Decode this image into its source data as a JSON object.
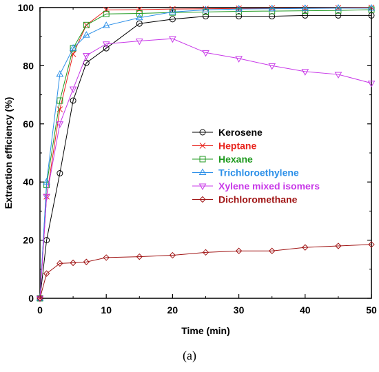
{
  "chart_data": {
    "type": "line",
    "xlabel": "Time (min)",
    "ylabel": "Extraction efficiency (%)",
    "xlim": [
      0,
      50
    ],
    "ylim": [
      0,
      100
    ],
    "xticks": [
      "0",
      "10",
      "20",
      "30",
      "40",
      "50"
    ],
    "yticks": [
      "0",
      "20",
      "40",
      "60",
      "80",
      "100"
    ],
    "grid": false,
    "legend_position": "center-right",
    "panel_label": "(a)",
    "series": [
      {
        "name": "Kerosene",
        "color": "#000000",
        "marker": "circle",
        "x": [
          0,
          1,
          3,
          5,
          7,
          10,
          15,
          20,
          25,
          30,
          35,
          40,
          45,
          50
        ],
        "y": [
          0,
          20,
          43,
          68,
          81,
          86,
          94.5,
          96,
          97,
          97,
          97,
          97.3,
          97.3,
          97.3
        ]
      },
      {
        "name": "Heptane",
        "color": "#e8231c",
        "marker": "x",
        "x": [
          0,
          1,
          3,
          5,
          7,
          10,
          15,
          20,
          25,
          30,
          35,
          40,
          45,
          50
        ],
        "y": [
          0,
          35,
          65,
          84,
          94,
          99.2,
          99.3,
          99.5,
          99.6,
          99.7,
          99.8,
          99.8,
          99.9,
          100
        ]
      },
      {
        "name": "Hexane",
        "color": "#1f9a1f",
        "marker": "square",
        "x": [
          0,
          1,
          3,
          5,
          7,
          10,
          15,
          20,
          25,
          30,
          35,
          40,
          45,
          50
        ],
        "y": [
          0,
          39,
          68,
          86,
          94,
          97.8,
          98,
          98.3,
          98.5,
          98.7,
          98.8,
          98.9,
          99,
          99.3
        ]
      },
      {
        "name": "Trichloroethylene",
        "color": "#2b8fe8",
        "marker": "triangle-up",
        "x": [
          0,
          1,
          3,
          5,
          7,
          10,
          15,
          20,
          25,
          30,
          35,
          40,
          45,
          50
        ],
        "y": [
          0,
          40,
          77,
          86,
          90.5,
          93.8,
          96.5,
          98.5,
          99.2,
          99.5,
          99.6,
          99.7,
          99.8,
          99.8
        ]
      },
      {
        "name": "Xylene mixed isomers",
        "color": "#c838e8",
        "marker": "triangle-down",
        "x": [
          0,
          1,
          3,
          5,
          7,
          10,
          15,
          20,
          25,
          30,
          35,
          40,
          45,
          50
        ],
        "y": [
          0,
          35,
          60,
          72,
          83.5,
          87.5,
          88.5,
          89.3,
          84.5,
          82.5,
          80,
          78,
          77,
          74
        ]
      },
      {
        "name": "Dichloromethane",
        "color": "#a01414",
        "marker": "diamond",
        "x": [
          0,
          1,
          3,
          5,
          7,
          10,
          15,
          20,
          25,
          30,
          35,
          40,
          45,
          50
        ],
        "y": [
          0,
          8.5,
          12,
          12.2,
          12.5,
          14,
          14.3,
          14.8,
          15.8,
          16.3,
          16.3,
          17.5,
          18,
          18.5
        ]
      }
    ]
  }
}
